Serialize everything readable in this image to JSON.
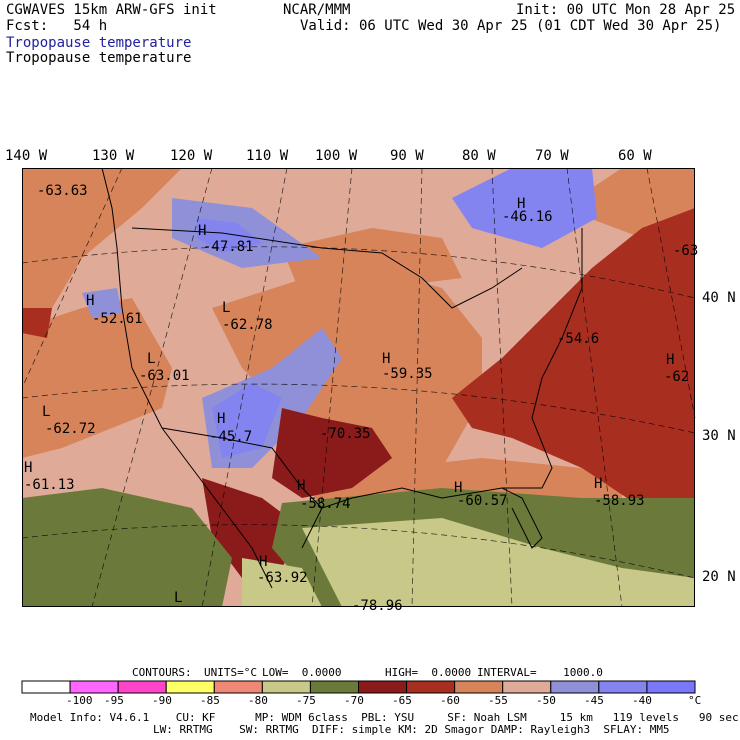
{
  "header": {
    "model": "CGWAVES 15km ARW-GFS init",
    "forecast": "Fcst:   54 h",
    "title_blue": "Tropopause temperature",
    "title_black": "Tropopause temperature",
    "org": "NCAR/MMM",
    "init": "Init: 00 UTC Mon 28 Apr 25",
    "valid": "Valid: 06 UTC Wed 30 Apr 25 (01 CDT Wed 30 Apr 25)"
  },
  "colors": {
    "title_blue": "#2020a0",
    "scale": [
      "#ffffff",
      "#ff66ff",
      "#ff44cc",
      "#ffff66",
      "#f08878",
      "#c8c888",
      "#6b7a3a",
      "#8b1a1a",
      "#a82e20",
      "#d8845a",
      "#e0aa98",
      "#9090d8",
      "#8484f0",
      "#7878f8"
    ]
  },
  "map": {
    "lon_labels": [
      "140 W",
      "130 W",
      "120 W",
      "110 W",
      "100 W",
      "90 W",
      "80 W",
      "70 W",
      "60 W"
    ],
    "lat_labels": [
      "40 N",
      "30 N",
      "20 N"
    ],
    "centers": [
      {
        "type": "",
        "value": "-63.63"
      },
      {
        "type": "H",
        "value": "-46.16"
      },
      {
        "type": "H",
        "value": "-47.81"
      },
      {
        "type": "",
        "value": "-63"
      },
      {
        "type": "H",
        "value": "-52.61"
      },
      {
        "type": "L",
        "value": "-62.78"
      },
      {
        "type": "",
        "value": "-54.6"
      },
      {
        "type": "L",
        "value": "-63.01"
      },
      {
        "type": "H",
        "value": "-59.35"
      },
      {
        "type": "H",
        "value": "-62"
      },
      {
        "type": "L",
        "value": "-62.72"
      },
      {
        "type": "H",
        "value": "-45.7"
      },
      {
        "type": "",
        "value": "-70.35"
      },
      {
        "type": "H",
        "value": "-61.13"
      },
      {
        "type": "H",
        "value": "-58.74"
      },
      {
        "type": "H",
        "value": "-60.57"
      },
      {
        "type": "H",
        "value": "-58.93"
      },
      {
        "type": "H",
        "value": "-63.92"
      },
      {
        "type": "L",
        "value": ""
      },
      {
        "type": "",
        "value": "-78.96"
      }
    ]
  },
  "contours": {
    "label": "CONTOURS:",
    "units": "UNITS=°C",
    "low": "LOW=  0.0000",
    "high": "HIGH=  0.0000",
    "interval": "INTERVAL=    1000.0"
  },
  "colorbar": {
    "ticks": [
      "-100",
      "-95",
      "-90",
      "-85",
      "-80",
      "-75",
      "-70",
      "-65",
      "-60",
      "-55",
      "-50",
      "-45",
      "-40"
    ],
    "unit": "°C"
  },
  "footer": {
    "line1": "Model Info: V4.6.1    CU: KF      MP: WDM 6class  PBL: YSU     SF: Noah LSM     15 km   119 levels   90 sec",
    "line2": "LW: RRTMG    SW: RRTMG  DIFF: simple KM: 2D Smagor DAMP: Rayleigh3  SFLAY: MM5"
  }
}
